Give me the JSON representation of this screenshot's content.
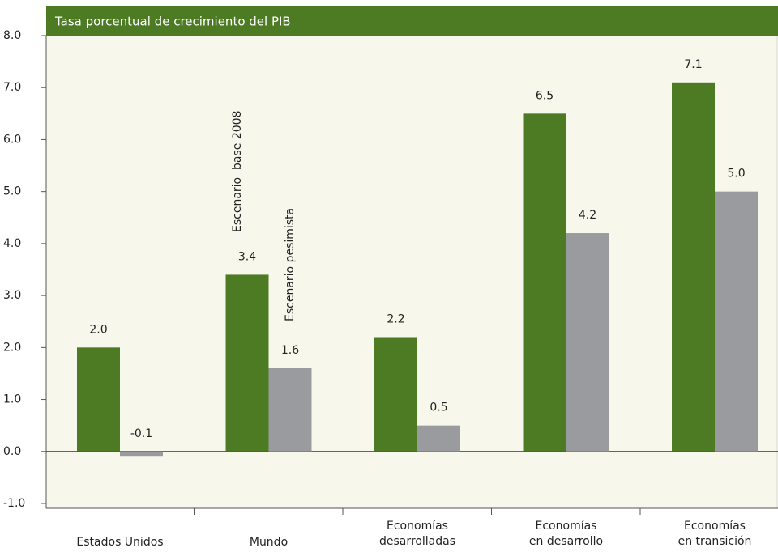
{
  "chart_data": {
    "type": "bar",
    "title": "Tasa porcentual de crecimiento del PIB",
    "categories": [
      "Estados Unidos",
      "Mundo",
      "Economías\ndesarrolladas",
      "Economías\nen desarrollo",
      "Economías\nen transición"
    ],
    "series": [
      {
        "name": "Escenario  base 2008",
        "color": "#4d7b24",
        "values": [
          2.0,
          3.4,
          2.2,
          6.5,
          7.1
        ],
        "value_labels": [
          "2.0",
          "3.4",
          "2.2",
          "6.5",
          "7.1"
        ]
      },
      {
        "name": "Escenario pesimista",
        "color": "#9a9b9f",
        "values": [
          -0.1,
          1.6,
          0.5,
          4.2,
          5.0
        ],
        "value_labels": [
          "-0.1",
          "1.6",
          "0.5",
          "4.2",
          "5.0"
        ]
      }
    ],
    "ylim": [
      -1,
      8
    ],
    "yticks": [
      {
        "value": -1,
        "label": "-1.0"
      },
      {
        "value": 0,
        "label": "0.0"
      },
      {
        "value": 1,
        "label": "1.0"
      },
      {
        "value": 2,
        "label": "2.0"
      },
      {
        "value": 3,
        "label": "3.0"
      },
      {
        "value": 4,
        "label": "4.0"
      },
      {
        "value": 5,
        "label": "5.0"
      },
      {
        "value": 6,
        "label": "6.0"
      },
      {
        "value": 7,
        "label": "7.0"
      },
      {
        "value": 8,
        "label": "8.0"
      }
    ]
  }
}
